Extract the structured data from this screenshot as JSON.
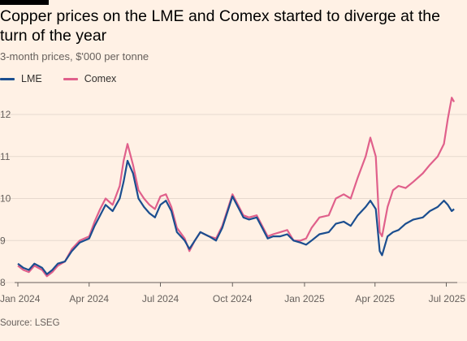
{
  "header": {
    "title": "Copper prices on the LME and Comex started to diverge at the turn of the year",
    "subtitle": "3-month prices, $'000 per tonne"
  },
  "footer": {
    "source": "Source: LSEG"
  },
  "colors": {
    "background": "#fff1e5",
    "lme": "#1b4e8f",
    "comex": "#e0608b",
    "grid": "#e6d9ce",
    "text": "#66605c"
  },
  "chart_data": {
    "type": "line",
    "title": "Copper prices on the LME and Comex started to diverge at the turn of the year",
    "subtitle": "3-month prices, $'000 per tonne",
    "xlabel": "",
    "ylabel": "",
    "x_ticks": [
      "Jan 2024",
      "Apr 2024",
      "Jul 2024",
      "Oct 2024",
      "Jan 2025",
      "Apr 2025",
      "Jul 2025"
    ],
    "y_ticks": [
      8,
      9,
      10,
      11,
      12
    ],
    "ylim": [
      8,
      12.6
    ],
    "xlim": [
      "2024-01-01",
      "2025-07-15"
    ],
    "legend": "top-left",
    "grid": true,
    "series": [
      {
        "name": "LME",
        "color": "#1b4e8f",
        "points": [
          [
            "2024-01-01",
            8.45
          ],
          [
            "2024-01-08",
            8.35
          ],
          [
            "2024-01-15",
            8.3
          ],
          [
            "2024-01-22",
            8.45
          ],
          [
            "2024-02-01",
            8.35
          ],
          [
            "2024-02-07",
            8.2
          ],
          [
            "2024-02-14",
            8.3
          ],
          [
            "2024-02-21",
            8.45
          ],
          [
            "2024-03-01",
            8.5
          ],
          [
            "2024-03-10",
            8.75
          ],
          [
            "2024-03-20",
            8.95
          ],
          [
            "2024-04-01",
            9.05
          ],
          [
            "2024-04-08",
            9.35
          ],
          [
            "2024-04-15",
            9.6
          ],
          [
            "2024-04-22",
            9.85
          ],
          [
            "2024-05-01",
            9.7
          ],
          [
            "2024-05-10",
            10.0
          ],
          [
            "2024-05-15",
            10.4
          ],
          [
            "2024-05-20",
            10.9
          ],
          [
            "2024-05-27",
            10.6
          ],
          [
            "2024-06-03",
            10.0
          ],
          [
            "2024-06-10",
            9.8
          ],
          [
            "2024-06-17",
            9.65
          ],
          [
            "2024-06-24",
            9.55
          ],
          [
            "2024-07-01",
            9.85
          ],
          [
            "2024-07-08",
            9.95
          ],
          [
            "2024-07-15",
            9.7
          ],
          [
            "2024-07-22",
            9.2
          ],
          [
            "2024-08-01",
            9.0
          ],
          [
            "2024-08-07",
            8.8
          ],
          [
            "2024-08-14",
            9.0
          ],
          [
            "2024-08-21",
            9.2
          ],
          [
            "2024-09-01",
            9.1
          ],
          [
            "2024-09-10",
            9.0
          ],
          [
            "2024-09-18",
            9.3
          ],
          [
            "2024-09-25",
            9.7
          ],
          [
            "2024-10-01",
            10.05
          ],
          [
            "2024-10-08",
            9.8
          ],
          [
            "2024-10-15",
            9.55
          ],
          [
            "2024-10-22",
            9.5
          ],
          [
            "2024-11-01",
            9.55
          ],
          [
            "2024-11-08",
            9.3
          ],
          [
            "2024-11-15",
            9.05
          ],
          [
            "2024-11-22",
            9.1
          ],
          [
            "2024-12-01",
            9.1
          ],
          [
            "2024-12-10",
            9.15
          ],
          [
            "2024-12-18",
            9.0
          ],
          [
            "2024-12-27",
            8.95
          ],
          [
            "2025-01-03",
            8.9
          ],
          [
            "2025-01-10",
            9.0
          ],
          [
            "2025-01-20",
            9.15
          ],
          [
            "2025-02-01",
            9.2
          ],
          [
            "2025-02-10",
            9.4
          ],
          [
            "2025-02-20",
            9.45
          ],
          [
            "2025-03-01",
            9.35
          ],
          [
            "2025-03-10",
            9.6
          ],
          [
            "2025-03-20",
            9.8
          ],
          [
            "2025-03-26",
            9.95
          ],
          [
            "2025-04-02",
            9.75
          ],
          [
            "2025-04-07",
            8.75
          ],
          [
            "2025-04-10",
            8.65
          ],
          [
            "2025-04-17",
            9.1
          ],
          [
            "2025-04-24",
            9.2
          ],
          [
            "2025-05-01",
            9.25
          ],
          [
            "2025-05-10",
            9.4
          ],
          [
            "2025-05-20",
            9.5
          ],
          [
            "2025-06-01",
            9.55
          ],
          [
            "2025-06-10",
            9.7
          ],
          [
            "2025-06-20",
            9.8
          ],
          [
            "2025-06-28",
            9.95
          ],
          [
            "2025-07-03",
            9.85
          ],
          [
            "2025-07-08",
            9.7
          ],
          [
            "2025-07-11",
            9.75
          ]
        ]
      },
      {
        "name": "Comex",
        "color": "#e0608b",
        "points": [
          [
            "2024-01-01",
            8.4
          ],
          [
            "2024-01-08",
            8.3
          ],
          [
            "2024-01-15",
            8.25
          ],
          [
            "2024-01-22",
            8.4
          ],
          [
            "2024-02-01",
            8.3
          ],
          [
            "2024-02-07",
            8.15
          ],
          [
            "2024-02-14",
            8.25
          ],
          [
            "2024-02-21",
            8.4
          ],
          [
            "2024-03-01",
            8.5
          ],
          [
            "2024-03-10",
            8.8
          ],
          [
            "2024-03-20",
            9.0
          ],
          [
            "2024-04-01",
            9.1
          ],
          [
            "2024-04-08",
            9.45
          ],
          [
            "2024-04-15",
            9.75
          ],
          [
            "2024-04-22",
            10.0
          ],
          [
            "2024-05-01",
            9.85
          ],
          [
            "2024-05-10",
            10.3
          ],
          [
            "2024-05-15",
            10.9
          ],
          [
            "2024-05-20",
            11.3
          ],
          [
            "2024-05-27",
            10.8
          ],
          [
            "2024-06-03",
            10.2
          ],
          [
            "2024-06-10",
            10.0
          ],
          [
            "2024-06-17",
            9.85
          ],
          [
            "2024-06-24",
            9.75
          ],
          [
            "2024-07-01",
            10.05
          ],
          [
            "2024-07-08",
            10.1
          ],
          [
            "2024-07-15",
            9.8
          ],
          [
            "2024-07-22",
            9.3
          ],
          [
            "2024-08-01",
            9.05
          ],
          [
            "2024-08-07",
            8.75
          ],
          [
            "2024-08-14",
            9.0
          ],
          [
            "2024-08-21",
            9.2
          ],
          [
            "2024-09-01",
            9.1
          ],
          [
            "2024-09-10",
            9.05
          ],
          [
            "2024-09-18",
            9.35
          ],
          [
            "2024-09-25",
            9.75
          ],
          [
            "2024-10-01",
            10.1
          ],
          [
            "2024-10-08",
            9.85
          ],
          [
            "2024-10-15",
            9.6
          ],
          [
            "2024-10-22",
            9.55
          ],
          [
            "2024-11-01",
            9.6
          ],
          [
            "2024-11-08",
            9.35
          ],
          [
            "2024-11-15",
            9.1
          ],
          [
            "2024-11-22",
            9.15
          ],
          [
            "2024-12-01",
            9.2
          ],
          [
            "2024-12-10",
            9.25
          ],
          [
            "2024-12-18",
            9.0
          ],
          [
            "2024-12-27",
            9.0
          ],
          [
            "2025-01-03",
            9.05
          ],
          [
            "2025-01-10",
            9.3
          ],
          [
            "2025-01-20",
            9.55
          ],
          [
            "2025-02-01",
            9.6
          ],
          [
            "2025-02-10",
            10.0
          ],
          [
            "2025-02-20",
            10.1
          ],
          [
            "2025-03-01",
            10.0
          ],
          [
            "2025-03-10",
            10.5
          ],
          [
            "2025-03-20",
            11.0
          ],
          [
            "2025-03-26",
            11.45
          ],
          [
            "2025-04-02",
            11.0
          ],
          [
            "2025-04-07",
            9.2
          ],
          [
            "2025-04-10",
            9.1
          ],
          [
            "2025-04-17",
            9.8
          ],
          [
            "2025-04-24",
            10.2
          ],
          [
            "2025-05-01",
            10.3
          ],
          [
            "2025-05-10",
            10.25
          ],
          [
            "2025-05-20",
            10.4
          ],
          [
            "2025-06-01",
            10.6
          ],
          [
            "2025-06-10",
            10.8
          ],
          [
            "2025-06-20",
            11.0
          ],
          [
            "2025-06-28",
            11.3
          ],
          [
            "2025-07-03",
            11.9
          ],
          [
            "2025-07-08",
            12.4
          ],
          [
            "2025-07-11",
            12.3
          ]
        ]
      }
    ]
  }
}
